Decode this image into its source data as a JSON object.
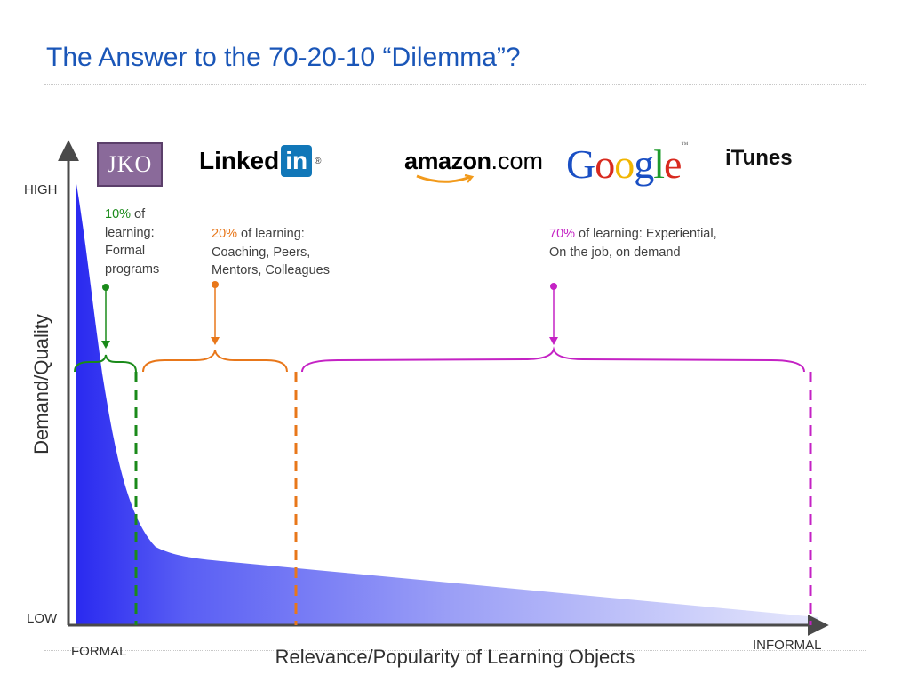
{
  "slide": {
    "title": "The Answer to the 70-20-10 “Dilemma”?"
  },
  "diagram": {
    "y_axis": {
      "label": "Demand/Quality",
      "high": "HIGH",
      "low": "LOW"
    },
    "x_axis": {
      "label": "Relevance/Popularity of Learning Objects",
      "start": "FORMAL",
      "end": "INFORMAL"
    },
    "segments": [
      {
        "id": "formal",
        "percent": "10%",
        "text": " of learning: Formal programs",
        "color": "#1a8a1a"
      },
      {
        "id": "coaching",
        "percent": "20%",
        "text": " of learning: Coaching, Peers, Mentors, Colleagues",
        "color": "#e8771a"
      },
      {
        "id": "experiential",
        "percent": "70%",
        "text": " of learning: Experiential, On the job, on demand",
        "color": "#c422c4"
      }
    ],
    "curve_color": "#2a2af0"
  },
  "logos": {
    "jko": "JKO",
    "linkedin": {
      "word": "Linked",
      "box": "in",
      "mark": "®"
    },
    "amazon": {
      "bold": "amazon",
      "suffix": ".com"
    },
    "google": {
      "letters": [
        "G",
        "o",
        "o",
        "g",
        "l",
        "e"
      ],
      "colors": [
        "#1a4fc4",
        "#d82a1f",
        "#f1b500",
        "#1a4fc4",
        "#1e9b2d",
        "#d82a1f"
      ],
      "mark": "™"
    },
    "itunes": "iTunes"
  }
}
